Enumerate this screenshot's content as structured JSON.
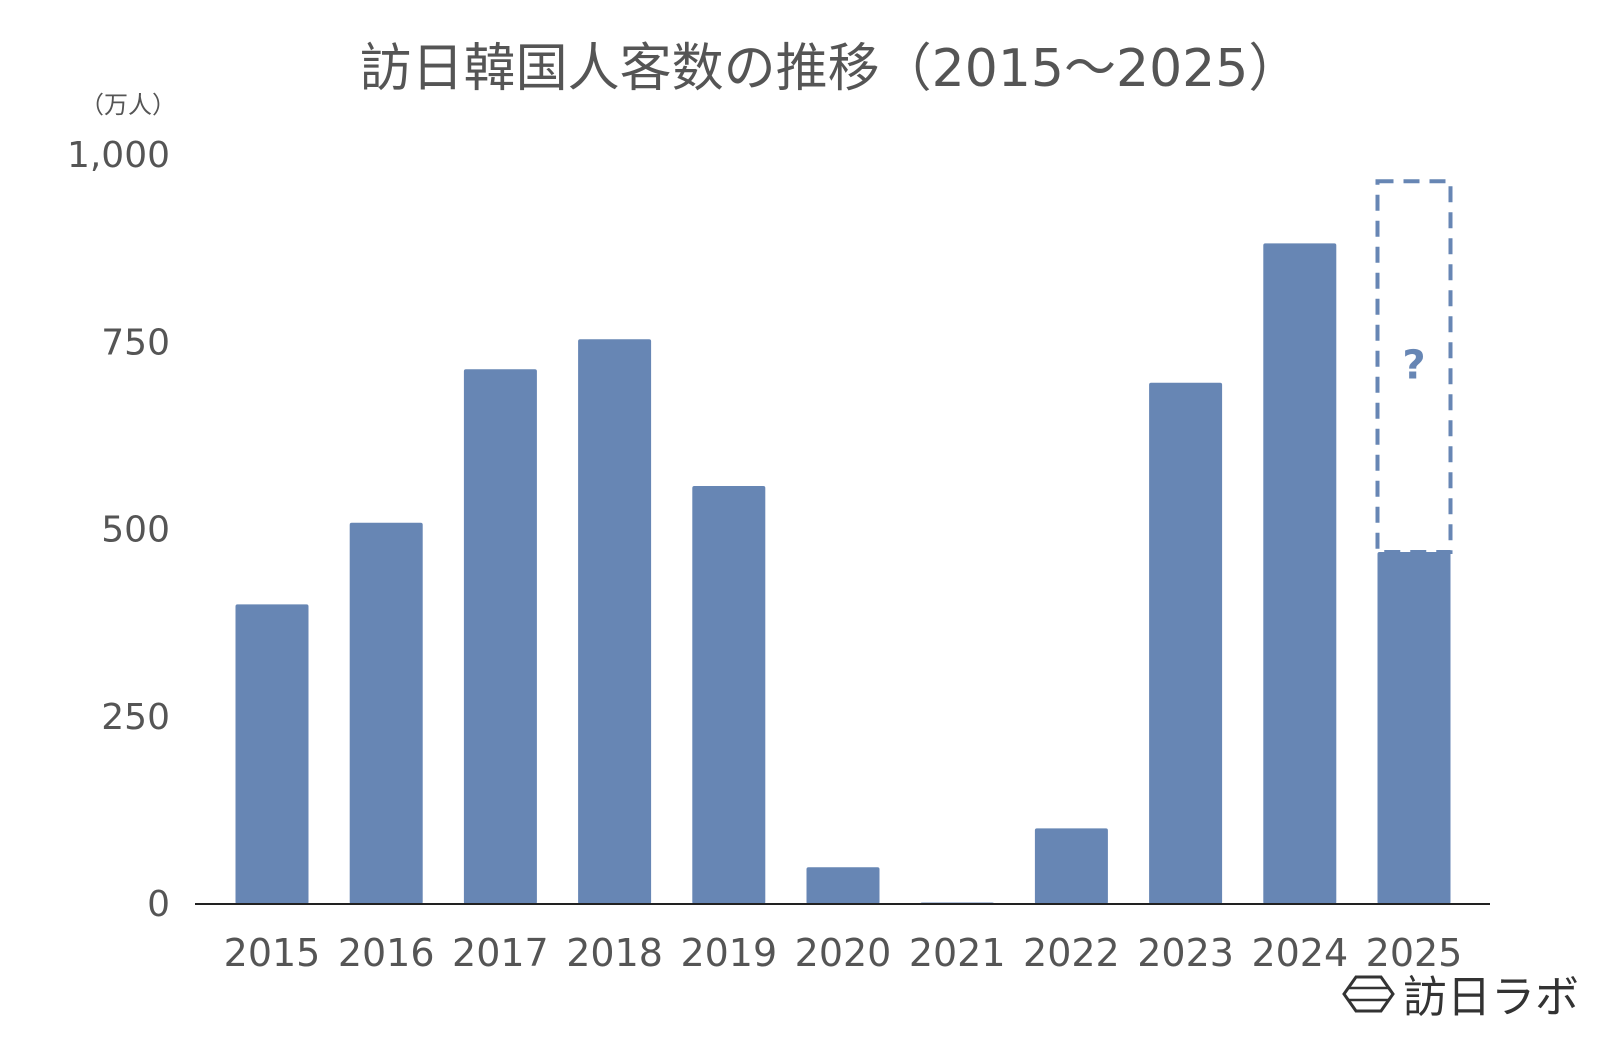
{
  "chart_data": {
    "type": "bar",
    "title": "訪日韓国人客数の推移（2015〜2025）",
    "unit_label": "（万人）",
    "categories": [
      "2015",
      "2016",
      "2017",
      "2018",
      "2019",
      "2020",
      "2021",
      "2022",
      "2023",
      "2024",
      "2025"
    ],
    "values": [
      400,
      509,
      714,
      754,
      558,
      49,
      2,
      101,
      696,
      882,
      470
    ],
    "ylim": [
      0,
      1000
    ],
    "yticks": [
      "0",
      "250",
      "500",
      "750",
      "1,000"
    ],
    "ytick_values": [
      0,
      250,
      500,
      750,
      1000
    ],
    "grid": false,
    "legend": "none",
    "bar_color": "#6786b4",
    "text_color": "#555555",
    "annotation": {
      "category": "2025",
      "text": "?",
      "range": [
        470,
        965
      ],
      "style": "dashed-box",
      "color": "#6786b4"
    }
  },
  "logo": {
    "text": "訪日ラボ",
    "icon": "hexagon-logo-icon"
  }
}
